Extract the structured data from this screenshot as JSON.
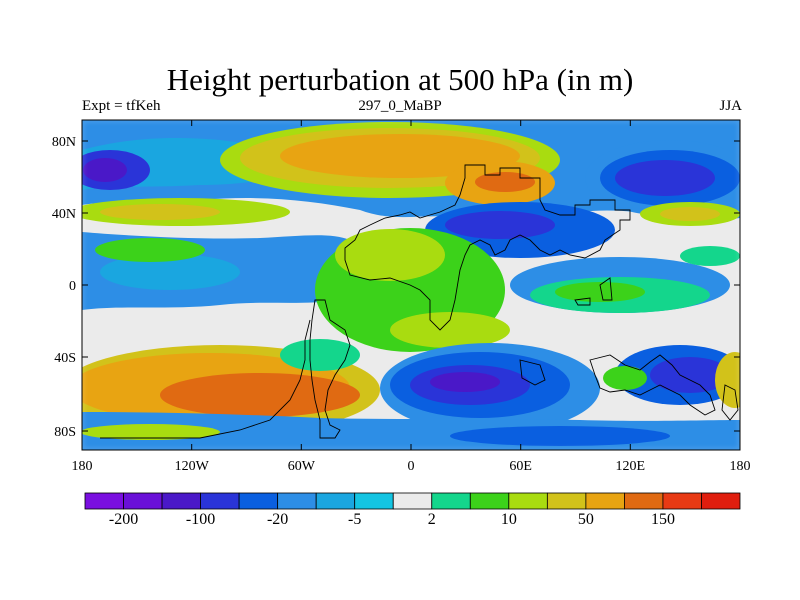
{
  "title": "Height perturbation at 500 hPa (in m)",
  "subtitle_left": "Expt = tfKeh",
  "subtitle_center": "297_0_MaBP",
  "subtitle_right": "JJA",
  "x_ticks": [
    "180",
    "120W",
    "60W",
    "0",
    "60E",
    "120E",
    "180"
  ],
  "y_ticks": [
    "80N",
    "40N",
    "0",
    "40S",
    "80S"
  ],
  "colorbar": {
    "colors": [
      "#7a0fe0",
      "#6a10d8",
      "#4a18c8",
      "#2a34d8",
      "#0a5fe0",
      "#2d8ee6",
      "#1aa6e0",
      "#14c4e2",
      "#ebebeb",
      "#14d68c",
      "#3cd21a",
      "#a9dc10",
      "#d2c21a",
      "#e8a412",
      "#e06a12",
      "#e83a14",
      "#e01e0e"
    ],
    "labels": [
      "-200",
      "-100",
      "-20",
      "-5",
      "2",
      "10",
      "50",
      "150"
    ]
  }
}
